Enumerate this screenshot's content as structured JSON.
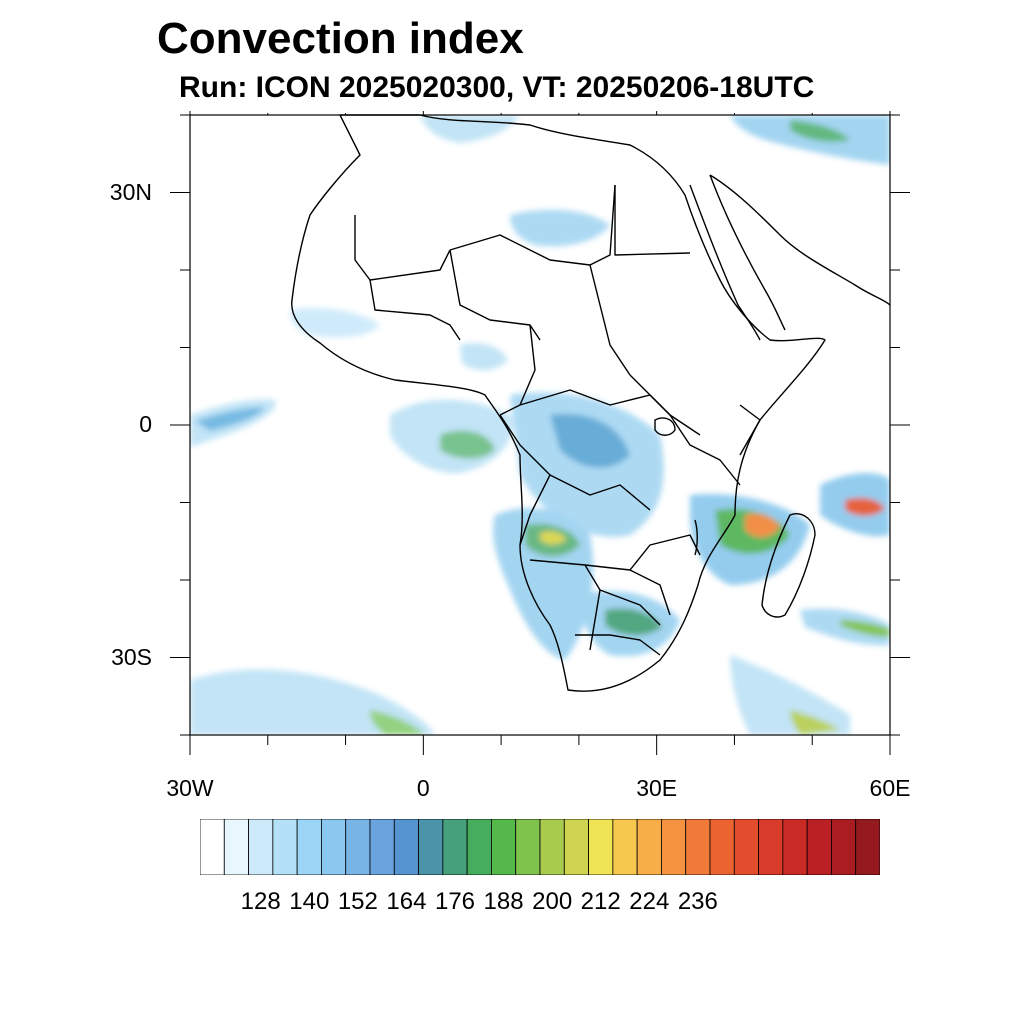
{
  "title": "Convection index",
  "subtitle": "Run: ICON 2025020300,  VT: 20250206-18UTC",
  "axes": {
    "lat_labels": [
      {
        "text": "30N",
        "lat": 30
      },
      {
        "text": "0",
        "lat": 0
      },
      {
        "text": "30S",
        "lat": -30
      }
    ],
    "lon_labels": [
      {
        "text": "30W",
        "lon": -30
      },
      {
        "text": "0",
        "lon": 0
      },
      {
        "text": "30E",
        "lon": 30
      },
      {
        "text": "60E",
        "lon": 60
      }
    ],
    "lon_range": [
      -30,
      60
    ],
    "lat_range": [
      -40,
      40
    ]
  },
  "colorbar": {
    "colors": [
      "#ffffff",
      "#e8f6fd",
      "#cdeafb",
      "#b4e0f8",
      "#9bd5f5",
      "#8cc7ef",
      "#78b5e6",
      "#6aa3dd",
      "#5594cf",
      "#4a93a8",
      "#47a07c",
      "#45ad5c",
      "#54b94a",
      "#7fc24c",
      "#a8ca4d",
      "#cfd34f",
      "#efe453",
      "#f6c94e",
      "#f7ad48",
      "#f59340",
      "#f17a38",
      "#ec6332",
      "#e34d2d",
      "#d93b2a",
      "#cb2b27",
      "#bb2025",
      "#a91c22",
      "#951a1f"
    ],
    "tick_labels": [
      "128",
      "140",
      "152",
      "164",
      "176",
      "188",
      "200",
      "212",
      "224",
      "236"
    ],
    "tick_positions": [
      2,
      4,
      6,
      8,
      10,
      12,
      14,
      16,
      18,
      20
    ]
  }
}
